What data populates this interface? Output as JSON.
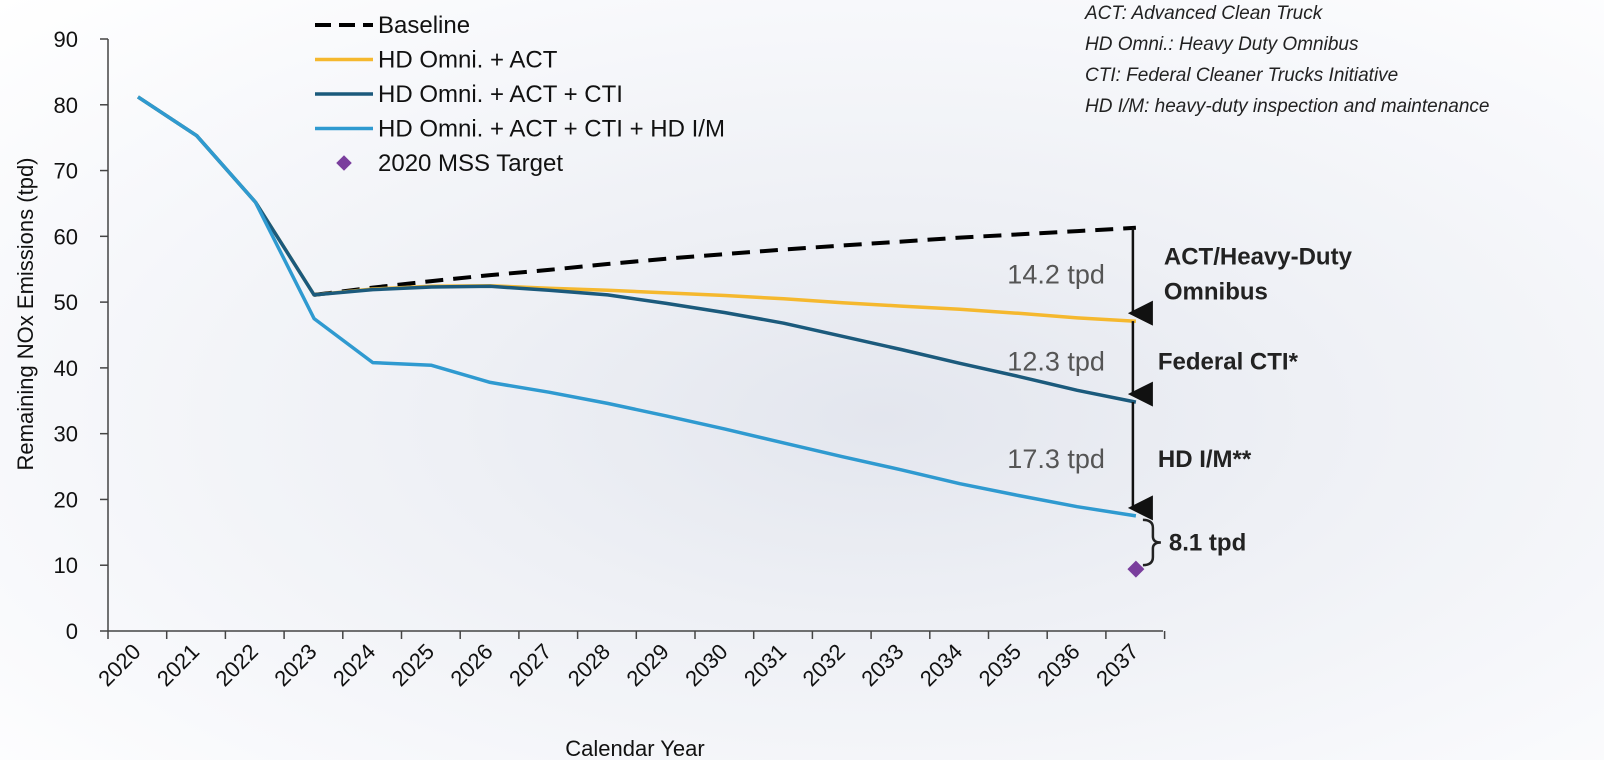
{
  "chart_data": {
    "type": "line",
    "title": "",
    "xlabel": "Calendar Year",
    "ylabel": "Remaining NOx Emissions (tpd)",
    "ylim": [
      0,
      90
    ],
    "yticks": [
      0,
      10,
      20,
      30,
      40,
      50,
      60,
      70,
      80,
      90
    ],
    "x": [
      "2020",
      "2021",
      "2022",
      "2023",
      "2024",
      "2025",
      "2026",
      "2027",
      "2028",
      "2029",
      "2030",
      "2031",
      "2032",
      "2033",
      "2034",
      "2035",
      "2036",
      "2037"
    ],
    "grid": false,
    "legend_position": "top-left",
    "series": [
      {
        "name": "Baseline",
        "color": "#000000",
        "dash": true,
        "values": [
          null,
          null,
          null,
          51.1,
          52.2,
          53.2,
          54.1,
          54.9,
          55.8,
          56.6,
          57.3,
          58.0,
          58.6,
          59.2,
          59.8,
          60.3,
          60.8,
          61.3
        ]
      },
      {
        "name": "HD Omni. + ACT",
        "color": "#f5b82e",
        "values": [
          81.2,
          75.3,
          65.2,
          51.1,
          52.0,
          52.4,
          52.5,
          52.1,
          51.8,
          51.4,
          51.0,
          50.5,
          49.9,
          49.4,
          48.9,
          48.3,
          47.6,
          47.1
        ]
      },
      {
        "name": "HD Omni. + ACT + CTI",
        "color": "#1b5a7c",
        "values": [
          81.2,
          75.3,
          65.2,
          51.1,
          51.9,
          52.3,
          52.4,
          51.8,
          51.1,
          49.8,
          48.4,
          46.8,
          44.8,
          42.8,
          40.7,
          38.7,
          36.6,
          34.8
        ]
      },
      {
        "name": "HD Omni. + ACT + CTI + HD I/M",
        "color": "#2f9ad0",
        "values": [
          81.2,
          75.3,
          65.2,
          47.5,
          40.8,
          40.4,
          37.8,
          36.3,
          34.6,
          32.7,
          30.7,
          28.6,
          26.5,
          24.5,
          22.4,
          20.6,
          18.9,
          17.5
        ]
      }
    ],
    "target": {
      "name": "2020 MSS Target",
      "color": "#7a3e9d",
      "x": "2037",
      "value": 9.4
    },
    "gaps": [
      {
        "value_label": "14.2 tpd",
        "category": "ACT/Heavy-Duty",
        "category2": "Omnibus",
        "from": 61.3,
        "to": 47.1
      },
      {
        "value_label": "12.3 tpd",
        "category": "Federal CTI*",
        "from": 47.1,
        "to": 34.8
      },
      {
        "value_label": "17.3 tpd",
        "category": "HD I/M**",
        "from": 34.8,
        "to": 17.5
      }
    ],
    "remaining_gap": {
      "label": "8.1 tpd",
      "from": 17.5,
      "to": 9.4
    },
    "annotations": [
      "ACT: Advanced Clean Truck",
      "HD Omni.: Heavy Duty Omnibus",
      "CTI: Federal Cleaner Trucks Initiative",
      "HD I/M: heavy-duty inspection and maintenance"
    ]
  }
}
